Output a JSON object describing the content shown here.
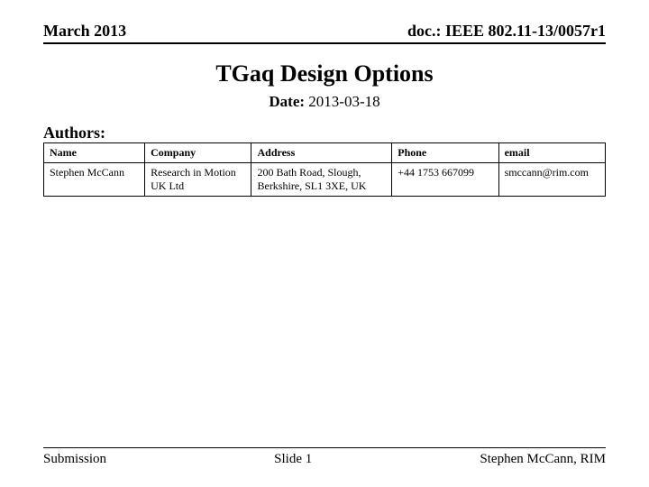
{
  "header": {
    "left": "March 2013",
    "right": "doc.: IEEE 802.11-13/0057r1"
  },
  "title": "TGaq Design Options",
  "date": {
    "label": "Date:",
    "value": "2013-03-18"
  },
  "authors_label": "Authors:",
  "table": {
    "columns": [
      "Name",
      "Company",
      "Address",
      "Phone",
      "email"
    ],
    "widths": [
      "18%",
      "19%",
      "25%",
      "19%",
      "19%"
    ],
    "rows": [
      {
        "name": "Stephen McCann",
        "company": "Research in Motion UK Ltd",
        "address": "200 Bath Road, Slough, Berkshire, SL1 3XE, UK",
        "phone": "+44 1753 667099",
        "email": "smccann@rim.com"
      }
    ]
  },
  "footer": {
    "left": "Submission",
    "center": "Slide 1",
    "right": "Stephen McCann, RIM"
  },
  "colors": {
    "text": "#000000",
    "background": "#ffffff",
    "border": "#000000"
  }
}
